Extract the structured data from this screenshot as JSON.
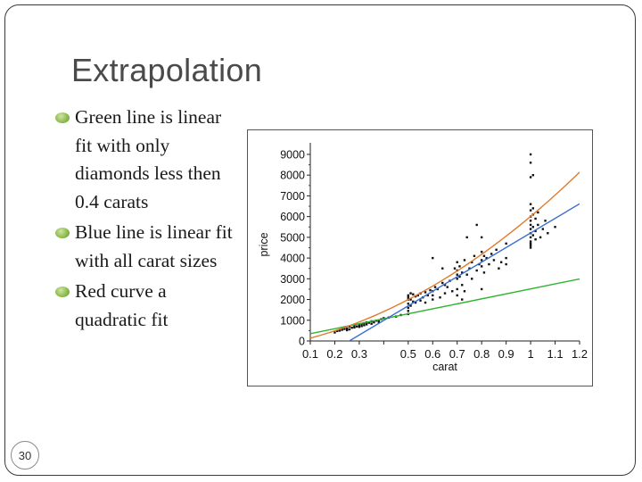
{
  "slide": {
    "title": "Extrapolation",
    "bullets": [
      "Green line is linear fit with only diamonds less then 0.4 carats",
      "Blue line is linear fit with all carat sizes",
      "Red curve a quadratic fit"
    ],
    "slide_number": "30"
  },
  "chart_data": {
    "type": "scatter",
    "xlabel": "carat",
    "ylabel": "price",
    "xlim": [
      0.1,
      1.2
    ],
    "ylim": [
      0,
      9300
    ],
    "x_ticks": [
      "0.1",
      "0.2",
      "0.3",
      "0.5",
      "0.6",
      "0.7",
      "0.8",
      "0.9",
      "1",
      "1.1",
      "1.2"
    ],
    "x_tick_values": [
      0.1,
      0.2,
      0.3,
      0.5,
      0.6,
      0.7,
      0.8,
      0.9,
      1.0,
      1.1,
      1.2
    ],
    "y_ticks": [
      "0",
      "1000",
      "2000",
      "3000",
      "4000",
      "5000",
      "6000",
      "7000",
      "8000",
      "9000"
    ],
    "y_tick_values": [
      0,
      1000,
      2000,
      3000,
      4000,
      5000,
      6000,
      7000,
      8000,
      9000
    ],
    "colors": {
      "points": "#111111",
      "green": "#2db32d",
      "blue": "#3a6fd0",
      "red": "#e07a2a"
    },
    "fits": {
      "green": {
        "kind": "linear",
        "x_range": [
          0.1,
          1.2
        ],
        "intercept": 112,
        "slope": 2400
      },
      "blue": {
        "kind": "linear",
        "x_range": [
          0.18,
          1.2
        ],
        "intercept": -1820,
        "slope": 7030
      },
      "red": {
        "kind": "quadratic",
        "x_range": [
          0.1,
          1.2
        ],
        "a": 3750,
        "b": 2400,
        "c": -140
      }
    },
    "points": [
      [
        0.2,
        410
      ],
      [
        0.21,
        480
      ],
      [
        0.22,
        500
      ],
      [
        0.23,
        540
      ],
      [
        0.23,
        620
      ],
      [
        0.24,
        580
      ],
      [
        0.25,
        600
      ],
      [
        0.25,
        520
      ],
      [
        0.26,
        700
      ],
      [
        0.26,
        560
      ],
      [
        0.27,
        640
      ],
      [
        0.28,
        650
      ],
      [
        0.28,
        720
      ],
      [
        0.29,
        700
      ],
      [
        0.3,
        750
      ],
      [
        0.3,
        680
      ],
      [
        0.31,
        830
      ],
      [
        0.31,
        720
      ],
      [
        0.32,
        860
      ],
      [
        0.32,
        760
      ],
      [
        0.33,
        900
      ],
      [
        0.33,
        800
      ],
      [
        0.34,
        880
      ],
      [
        0.35,
        950
      ],
      [
        0.35,
        830
      ],
      [
        0.36,
        900
      ],
      [
        0.37,
        980
      ],
      [
        0.38,
        1000
      ],
      [
        0.38,
        900
      ],
      [
        0.39,
        1050
      ],
      [
        0.4,
        1100
      ],
      [
        0.42,
        1130
      ],
      [
        0.45,
        1180
      ],
      [
        0.47,
        1250
      ],
      [
        0.5,
        1450
      ],
      [
        0.5,
        1600
      ],
      [
        0.5,
        1800
      ],
      [
        0.5,
        2000
      ],
      [
        0.5,
        2100
      ],
      [
        0.5,
        2200
      ],
      [
        0.5,
        1300
      ],
      [
        0.51,
        1700
      ],
      [
        0.51,
        2000
      ],
      [
        0.51,
        2300
      ],
      [
        0.52,
        1900
      ],
      [
        0.52,
        2250
      ],
      [
        0.53,
        2150
      ],
      [
        0.53,
        1850
      ],
      [
        0.54,
        2200
      ],
      [
        0.55,
        1950
      ],
      [
        0.55,
        2300
      ],
      [
        0.56,
        2100
      ],
      [
        0.57,
        2350
      ],
      [
        0.57,
        1850
      ],
      [
        0.58,
        2200
      ],
      [
        0.59,
        2450
      ],
      [
        0.6,
        2400
      ],
      [
        0.6,
        2200
      ],
      [
        0.6,
        2000
      ],
      [
        0.61,
        2600
      ],
      [
        0.62,
        2500
      ],
      [
        0.63,
        2100
      ],
      [
        0.64,
        2800
      ],
      [
        0.65,
        2700
      ],
      [
        0.65,
        2300
      ],
      [
        0.66,
        2600
      ],
      [
        0.67,
        2900
      ],
      [
        0.68,
        2400
      ],
      [
        0.69,
        3500
      ],
      [
        0.7,
        2500
      ],
      [
        0.7,
        3000
      ],
      [
        0.7,
        3200
      ],
      [
        0.7,
        3400
      ],
      [
        0.7,
        3800
      ],
      [
        0.7,
        2200
      ],
      [
        0.71,
        3100
      ],
      [
        0.71,
        3600
      ],
      [
        0.72,
        2700
      ],
      [
        0.72,
        3300
      ],
      [
        0.73,
        2400
      ],
      [
        0.73,
        3900
      ],
      [
        0.74,
        3200
      ],
      [
        0.75,
        3500
      ],
      [
        0.76,
        3000
      ],
      [
        0.76,
        3800
      ],
      [
        0.77,
        4100
      ],
      [
        0.78,
        3400
      ],
      [
        0.79,
        3700
      ],
      [
        0.8,
        3600
      ],
      [
        0.8,
        3900
      ],
      [
        0.8,
        4300
      ],
      [
        0.8,
        2500
      ],
      [
        0.81,
        4100
      ],
      [
        0.81,
        3300
      ],
      [
        0.82,
        4000
      ],
      [
        0.83,
        3700
      ],
      [
        0.84,
        4200
      ],
      [
        0.85,
        3900
      ],
      [
        0.86,
        4400
      ],
      [
        0.87,
        3500
      ],
      [
        0.88,
        3800
      ],
      [
        0.9,
        4000
      ],
      [
        0.9,
        3700
      ],
      [
        0.9,
        4700
      ],
      [
        0.74,
        5000
      ],
      [
        0.78,
        5600
      ],
      [
        0.8,
        5000
      ],
      [
        0.64,
        3500
      ],
      [
        0.6,
        4000
      ],
      [
        0.72,
        2000
      ],
      [
        1.0,
        4500
      ],
      [
        1.0,
        4800
      ],
      [
        1.0,
        5000
      ],
      [
        1.0,
        5200
      ],
      [
        1.0,
        5400
      ],
      [
        1.0,
        5600
      ],
      [
        1.0,
        5800
      ],
      [
        1.0,
        6000
      ],
      [
        1.0,
        6300
      ],
      [
        1.0,
        6600
      ],
      [
        1.0,
        7900
      ],
      [
        1.0,
        8600
      ],
      [
        1.0,
        9000
      ],
      [
        1.0,
        4700
      ],
      [
        1.01,
        5100
      ],
      [
        1.01,
        5500
      ],
      [
        1.01,
        6100
      ],
      [
        1.01,
        6400
      ],
      [
        1.02,
        5300
      ],
      [
        1.02,
        5900
      ],
      [
        1.03,
        5600
      ],
      [
        1.03,
        6200
      ],
      [
        1.04,
        5000
      ],
      [
        1.05,
        5400
      ],
      [
        1.06,
        5800
      ],
      [
        1.07,
        5200
      ],
      [
        1.1,
        5500
      ],
      [
        1.01,
        8000
      ],
      [
        1.0,
        4600
      ],
      [
        1.02,
        4900
      ]
    ]
  }
}
